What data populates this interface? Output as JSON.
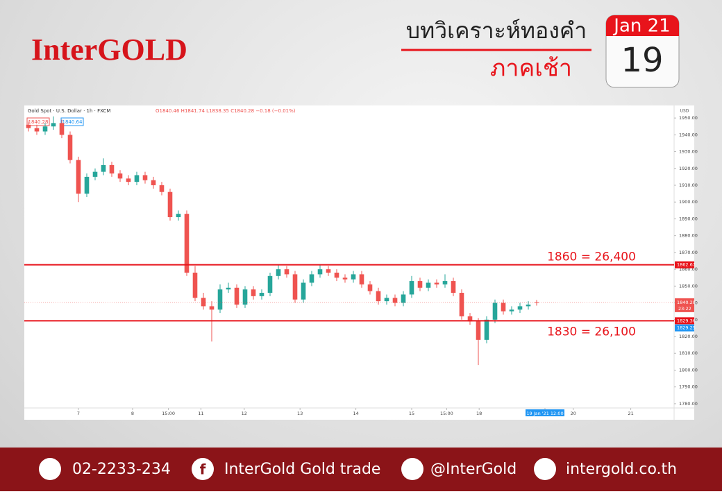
{
  "header": {
    "brand": "InterGOLD",
    "title": "บทวิเคราะห์ทองคำ",
    "subtitle": "ภาคเช้า",
    "date_month": "Jan 21",
    "date_day": "19"
  },
  "chart_data": {
    "type": "candlestick",
    "symbol_info": "Gold Spot · U.S. Dollar · 1h · FXCM",
    "ohlc_info": "O1840.46 H1841.74 L1838.35 C1840.28 −0.18 (−0.01%)",
    "price_tags": [
      "1840.28",
      "1840.64"
    ],
    "currency": "USD",
    "up_color": "#26a69a",
    "down_color": "#ef5350",
    "open": [
      1946,
      1944,
      1942,
      1945,
      1947,
      1940,
      1925,
      1905,
      1915,
      1918,
      1922,
      1917,
      1914,
      1912,
      1916,
      1913,
      1910,
      1906,
      1891,
      1893,
      1858,
      1843,
      1838,
      1836,
      1848,
      1849,
      1839,
      1848,
      1844,
      1846,
      1856,
      1860,
      1857,
      1842,
      1852,
      1857,
      1860,
      1858,
      1855,
      1854,
      1857,
      1851,
      1847,
      1841,
      1843,
      1840,
      1845,
      1853,
      1849,
      1852,
      1851,
      1853,
      1846,
      1832,
      1829,
      1818,
      1830,
      1840,
      1835,
      1836,
      1838,
      1840.46
    ],
    "high": [
      1948,
      1946,
      1947,
      1951,
      1949,
      1942,
      1927,
      1917,
      1920,
      1926,
      1924,
      1919,
      1916,
      1918,
      1918,
      1915,
      1912,
      1908,
      1895,
      1895,
      1862,
      1846,
      1841,
      1851,
      1852,
      1851,
      1850,
      1850,
      1848,
      1858,
      1863,
      1862,
      1859,
      1854,
      1859,
      1863,
      1862,
      1860,
      1857,
      1859,
      1859,
      1853,
      1849,
      1845,
      1845,
      1847,
      1856,
      1855,
      1854,
      1854,
      1857,
      1855,
      1848,
      1834,
      1831,
      1832,
      1842,
      1842,
      1838,
      1840,
      1841,
      1841.74
    ],
    "low": [
      1942,
      1940,
      1940,
      1943,
      1938,
      1923,
      1900,
      1903,
      1913,
      1916,
      1915,
      1912,
      1910,
      1910,
      1911,
      1908,
      1904,
      1889,
      1889,
      1856,
      1841,
      1836,
      1817,
      1834,
      1846,
      1837,
      1837,
      1842,
      1842,
      1844,
      1854,
      1855,
      1840,
      1840,
      1850,
      1855,
      1856,
      1853,
      1852,
      1852,
      1849,
      1845,
      1839,
      1839,
      1838,
      1838,
      1843,
      1847,
      1847,
      1849,
      1849,
      1844,
      1830,
      1827,
      1803,
      1816,
      1828,
      1833,
      1833,
      1834,
      1836,
      1838.35
    ],
    "close": [
      1944,
      1942,
      1945,
      1947,
      1940,
      1925,
      1905,
      1915,
      1918,
      1922,
      1917,
      1914,
      1912,
      1916,
      1913,
      1910,
      1906,
      1891,
      1893,
      1858,
      1843,
      1838,
      1836,
      1848,
      1849,
      1839,
      1848,
      1844,
      1846,
      1856,
      1860,
      1857,
      1842,
      1852,
      1857,
      1860,
      1858,
      1855,
      1854,
      1857,
      1851,
      1847,
      1841,
      1843,
      1840,
      1845,
      1853,
      1849,
      1852,
      1851,
      1853,
      1846,
      1832,
      1829,
      1818,
      1830,
      1840,
      1835,
      1836,
      1838,
      1839,
      1840.28
    ],
    "xlim": [
      0,
      78
    ],
    "xticks": [
      {
        "value": 6.5,
        "label": "7"
      },
      {
        "value": 13,
        "label": "8"
      },
      {
        "value": 17.3,
        "label": "15:00"
      },
      {
        "value": 21.2,
        "label": "11"
      },
      {
        "value": 26.4,
        "label": "12"
      },
      {
        "value": 33.1,
        "label": "13"
      },
      {
        "value": 39.8,
        "label": "14"
      },
      {
        "value": 46.5,
        "label": "15"
      },
      {
        "value": 50.7,
        "label": "15:00"
      },
      {
        "value": 54.6,
        "label": "18"
      },
      {
        "value": 62.5,
        "label": "19 Jan '21  12:00"
      },
      {
        "value": 65.9,
        "label": "20"
      },
      {
        "value": 72.8,
        "label": "21"
      }
    ],
    "ylim": [
      1775,
      1955
    ],
    "yticks": [
      {
        "value": 1780,
        "label": "1780.00"
      },
      {
        "value": 1790,
        "label": "1790.00"
      },
      {
        "value": 1800,
        "label": "1800.00"
      },
      {
        "value": 1810,
        "label": "1810.00"
      },
      {
        "value": 1820,
        "label": "1820.00"
      },
      {
        "value": 1830,
        "label": "1830.00"
      },
      {
        "value": 1840,
        "label": "1840.00"
      },
      {
        "value": 1850,
        "label": "1850.00"
      },
      {
        "value": 1860,
        "label": "1860.00"
      },
      {
        "value": 1870,
        "label": "1870.00"
      },
      {
        "value": 1880,
        "label": "1880.00"
      },
      {
        "value": 1890,
        "label": "1890.00"
      },
      {
        "value": 1900,
        "label": "1900.00"
      },
      {
        "value": 1910,
        "label": "1910.00"
      },
      {
        "value": 1920,
        "label": "1920.00"
      },
      {
        "value": 1930,
        "label": "1930.00"
      },
      {
        "value": 1940,
        "label": "1940.00"
      },
      {
        "value": 1950,
        "label": "1950.00"
      }
    ],
    "levels": [
      {
        "value": 1862.67,
        "label": "1862.67",
        "note": "1860 = 26,400",
        "color": "#e8141b"
      },
      {
        "value": 1829.36,
        "label": "1829.36",
        "note": "1830 = 26,100",
        "color": "#e8141b"
      }
    ],
    "last_price": {
      "value": 1840.28,
      "label": "1840.28",
      "countdown": "23:22",
      "color": "#ef5350"
    },
    "bid_tag": {
      "value": 1829.25,
      "label": "1829.25",
      "color": "#2196f3"
    }
  },
  "footer": {
    "phone": "02-2233-234",
    "facebook": "InterGold Gold trade",
    "line": "@InterGold",
    "website": "intergold.co.th"
  }
}
